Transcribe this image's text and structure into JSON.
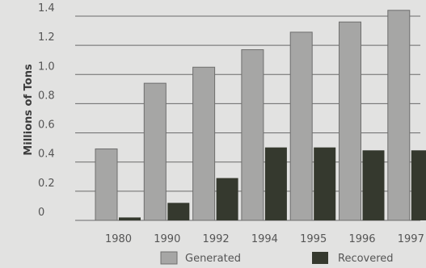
{
  "chart_data": {
    "type": "bar",
    "categories": [
      "1980",
      "1990",
      "1992",
      "1994",
      "1995",
      "1996",
      "1997"
    ],
    "series": [
      {
        "name": "Generated",
        "values": [
          0.49,
          0.94,
          1.05,
          1.17,
          1.29,
          1.36,
          1.44
        ]
      },
      {
        "name": "Recovered",
        "values": [
          0.02,
          0.12,
          0.29,
          0.5,
          0.5,
          0.48,
          0.48
        ]
      }
    ],
    "title": "",
    "xlabel": "",
    "ylabel": "Millions of Tons",
    "ylim": [
      0,
      1.4
    ],
    "yticks": [
      "0",
      "0.2",
      "0.4",
      "0.6",
      "0.8",
      "1.0",
      "1.2",
      "1.4"
    ],
    "grid": true,
    "legend_position": "bottom",
    "colors": {
      "background": "#e2e2e1",
      "generated": "#a6a6a5",
      "generated_edge": "#6e6e6d",
      "recovered": "#35392e",
      "gridline": "#6a6a6a"
    }
  }
}
